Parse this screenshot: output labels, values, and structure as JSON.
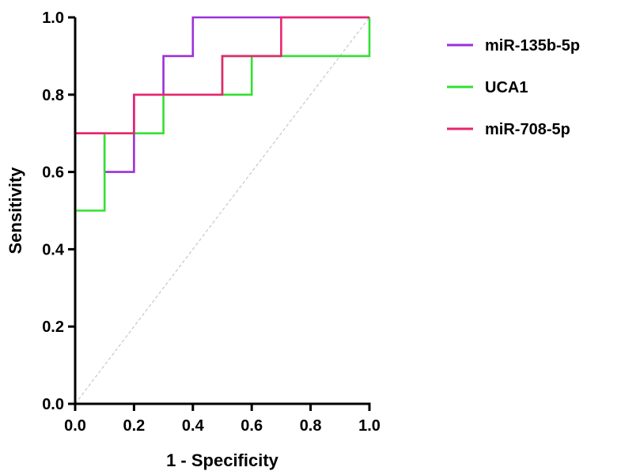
{
  "chart_data": {
    "type": "line",
    "title": "",
    "xlabel": "1 - Specificity",
    "ylabel": "Sensitivity",
    "xlim": [
      0,
      1
    ],
    "ylim": [
      0,
      1
    ],
    "xticks": [
      "0.0",
      "0.2",
      "0.4",
      "0.6",
      "0.8",
      "1.0"
    ],
    "yticks": [
      "0.0",
      "0.2",
      "0.4",
      "0.6",
      "0.8",
      "1.0"
    ],
    "grid": false,
    "legend_position": "top-right",
    "reference_line": {
      "from": [
        0,
        0
      ],
      "to": [
        1,
        1
      ],
      "style": "dashed",
      "color": "#c8c8c8"
    },
    "series": [
      {
        "name": "miR-135b-5p",
        "color": "#9b30d9",
        "points": [
          [
            0,
            0
          ],
          [
            0,
            0.7
          ],
          [
            0.1,
            0.7
          ],
          [
            0.1,
            0.6
          ],
          [
            0.2,
            0.6
          ],
          [
            0.2,
            0.8
          ],
          [
            0.3,
            0.8
          ],
          [
            0.3,
            0.9
          ],
          [
            0.4,
            0.9
          ],
          [
            0.4,
            1.0
          ],
          [
            1.0,
            1.0
          ]
        ]
      },
      {
        "name": "UCA1",
        "color": "#33e033",
        "points": [
          [
            0,
            0
          ],
          [
            0,
            0.5
          ],
          [
            0.1,
            0.5
          ],
          [
            0.1,
            0.7
          ],
          [
            0.3,
            0.7
          ],
          [
            0.3,
            0.8
          ],
          [
            0.5,
            0.8
          ],
          [
            0.5,
            0.9
          ],
          [
            0.6,
            0.9
          ],
          [
            0.6,
            0.8
          ],
          [
            0.5,
            0.8
          ],
          [
            0.5,
            0.9
          ],
          [
            1.0,
            0.9
          ],
          [
            1.0,
            1.0
          ]
        ]
      },
      {
        "name": "miR-708-5p",
        "color": "#e8256e",
        "points": [
          [
            0,
            0
          ],
          [
            0,
            0.7
          ],
          [
            0.2,
            0.7
          ],
          [
            0.2,
            0.8
          ],
          [
            0.5,
            0.8
          ],
          [
            0.5,
            0.9
          ],
          [
            0.7,
            0.9
          ],
          [
            0.7,
            1.0
          ],
          [
            1.0,
            1.0
          ]
        ]
      }
    ]
  }
}
